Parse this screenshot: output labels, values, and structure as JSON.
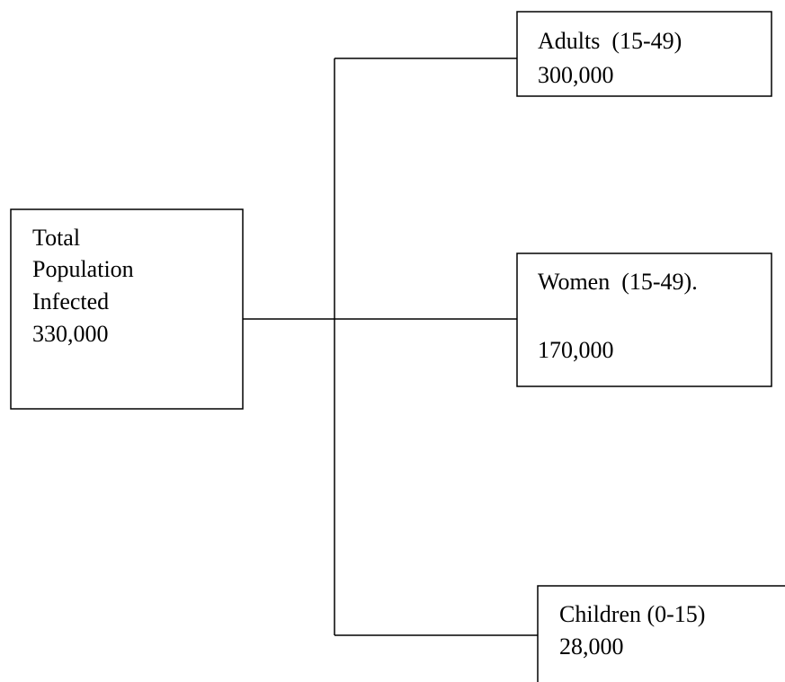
{
  "nodes": [
    {
      "lines": [
        "Total",
        "Population",
        "Infected",
        "330,000"
      ]
    },
    {
      "lines": [
        "Adults  (15-49)",
        "300,000"
      ]
    },
    {
      "lines": [
        "Women  (15-49).",
        "170,000"
      ]
    },
    {
      "lines": [
        "Children (0-15)",
        "28,000"
      ]
    }
  ]
}
